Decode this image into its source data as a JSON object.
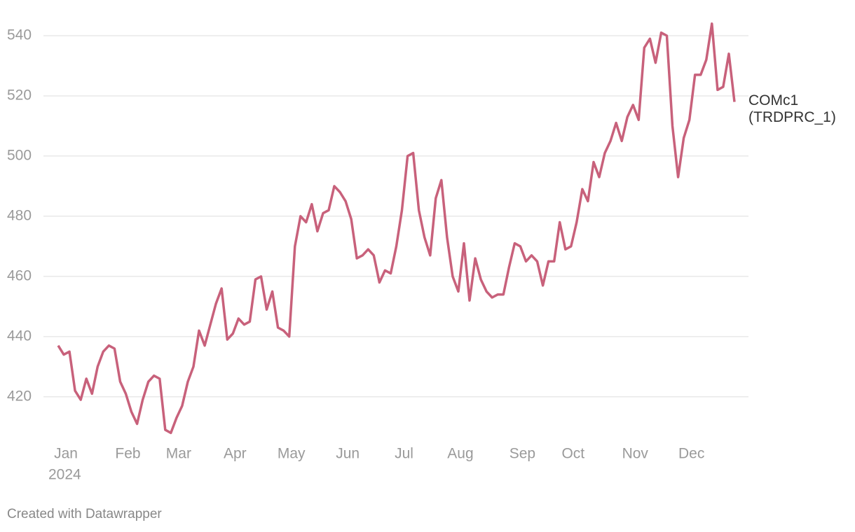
{
  "chart_data": {
    "type": "line",
    "categories": [
      null,
      "Jan",
      null,
      null,
      null,
      null,
      null,
      null,
      null,
      null,
      null,
      null,
      "Feb",
      null,
      null,
      null,
      null,
      null,
      null,
      null,
      null,
      "Mar",
      null,
      null,
      null,
      null,
      null,
      null,
      null,
      null,
      null,
      "Apr",
      null,
      null,
      null,
      null,
      null,
      null,
      null,
      null,
      null,
      "May",
      null,
      null,
      null,
      null,
      null,
      null,
      null,
      null,
      null,
      "Jun",
      null,
      null,
      null,
      null,
      null,
      null,
      null,
      null,
      null,
      "Jul",
      null,
      null,
      null,
      null,
      null,
      null,
      null,
      null,
      null,
      "Aug",
      null,
      null,
      null,
      null,
      null,
      null,
      null,
      null,
      null,
      null,
      "Sep",
      null,
      null,
      null,
      null,
      null,
      null,
      null,
      null,
      "Oct",
      null,
      null,
      null,
      null,
      null,
      null,
      null,
      null,
      null,
      null,
      "Nov",
      null,
      null,
      null,
      null,
      null,
      null,
      null,
      null,
      null,
      "Dec",
      null,
      null,
      null,
      null,
      null,
      null,
      null,
      null
    ],
    "year_label": "2024",
    "series": [
      {
        "name": "COMc1 (TRDPRC_1)",
        "color": "#c8617b",
        "values": [
          437,
          434,
          435,
          422,
          419,
          426,
          421,
          430,
          435,
          437,
          436,
          425,
          421,
          415,
          411,
          419,
          425,
          427,
          426,
          409,
          408,
          413,
          417,
          425,
          430,
          442,
          437,
          444,
          451,
          456,
          439,
          441,
          446,
          444,
          445,
          459,
          460,
          449,
          455,
          443,
          442,
          440,
          470,
          480,
          478,
          484,
          475,
          481,
          482,
          490,
          488,
          485,
          479,
          466,
          467,
          469,
          467,
          458,
          462,
          461,
          470,
          482,
          500,
          501,
          482,
          473,
          467,
          486,
          492,
          473,
          460,
          455,
          471,
          452,
          466,
          459,
          455,
          453,
          454,
          454,
          463,
          471,
          470,
          465,
          467,
          465,
          457,
          465,
          465,
          478,
          469,
          470,
          478,
          489,
          485,
          498,
          493,
          501,
          505,
          511,
          505,
          513,
          517,
          512,
          536,
          539,
          531,
          541,
          540,
          510,
          493,
          506,
          512,
          527,
          527,
          532,
          544,
          522,
          523,
          534,
          518
        ]
      }
    ],
    "ylim": [
      406,
      548
    ],
    "yticks": [
      420,
      440,
      460,
      480,
      500,
      520,
      540
    ],
    "grid": true,
    "footer": "Created with Datawrapper"
  }
}
